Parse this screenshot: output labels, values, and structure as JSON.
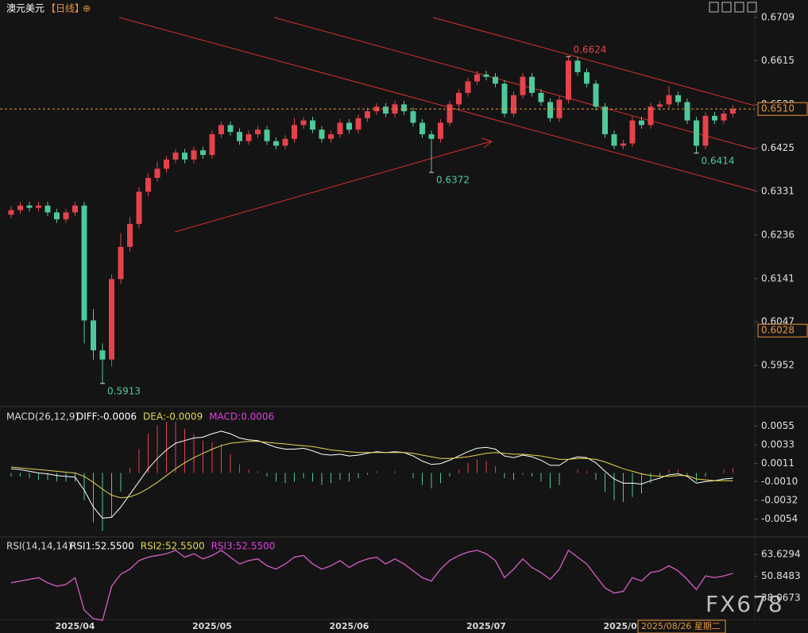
{
  "chart_data": [
    {
      "type": "candlestick",
      "title": "澳元美元",
      "subtitle": "【日线】",
      "categories": [
        null,
        null,
        null,
        null,
        null,
        null,
        null,
        "2025/04",
        null,
        null,
        null,
        null,
        null,
        null,
        null,
        null,
        null,
        null,
        null,
        null,
        null,
        null,
        "2025/05",
        null,
        null,
        null,
        null,
        null,
        null,
        null,
        null,
        null,
        null,
        null,
        null,
        null,
        null,
        "2025/06",
        null,
        null,
        null,
        null,
        null,
        null,
        null,
        null,
        null,
        null,
        null,
        null,
        null,
        null,
        "2025/07",
        null,
        null,
        null,
        null,
        null,
        null,
        null,
        null,
        null,
        null,
        null,
        null,
        null,
        null,
        "2025/08",
        null,
        null,
        null,
        null,
        null,
        null,
        null,
        null,
        null,
        null,
        null,
        null
      ],
      "open": [
        0.628,
        0.629,
        0.63,
        0.6295,
        0.63,
        0.6285,
        0.627,
        0.6285,
        0.63,
        0.605,
        0.5985,
        0.5965,
        0.614,
        0.621,
        0.626,
        0.633,
        0.636,
        0.638,
        0.64,
        0.6415,
        0.64,
        0.642,
        0.641,
        0.6455,
        0.6475,
        0.646,
        0.644,
        0.6455,
        0.6465,
        0.644,
        0.643,
        0.6445,
        0.6475,
        0.6485,
        0.6465,
        0.6445,
        0.6455,
        0.648,
        0.6465,
        0.649,
        0.6505,
        0.6515,
        0.65,
        0.652,
        0.6505,
        0.648,
        0.6455,
        0.6445,
        0.648,
        0.652,
        0.6545,
        0.657,
        0.6585,
        0.658,
        0.6565,
        0.65,
        0.654,
        0.658,
        0.6545,
        0.6525,
        0.649,
        0.653,
        0.6615,
        0.659,
        0.6565,
        0.6515,
        0.6455,
        0.643,
        0.6435,
        0.6485,
        0.6475,
        0.6515,
        0.652,
        0.654,
        0.6525,
        0.6485,
        0.643,
        0.6495,
        0.6485,
        0.65
      ],
      "high": [
        0.6298,
        0.6308,
        0.6308,
        0.6308,
        0.6308,
        0.6293,
        0.6293,
        0.6308,
        0.6308,
        0.6075,
        0.6,
        0.615,
        0.624,
        0.6275,
        0.634,
        0.637,
        0.6395,
        0.6408,
        0.6423,
        0.6423,
        0.6428,
        0.6428,
        0.6463,
        0.6483,
        0.6483,
        0.6468,
        0.6463,
        0.6473,
        0.6473,
        0.6448,
        0.6453,
        0.649,
        0.6493,
        0.6493,
        0.6473,
        0.6463,
        0.6488,
        0.6488,
        0.6498,
        0.6513,
        0.6523,
        0.6523,
        0.6528,
        0.6528,
        0.6513,
        0.6488,
        0.6463,
        0.6488,
        0.6528,
        0.6553,
        0.6578,
        0.6593,
        0.6593,
        0.6588,
        0.6573,
        0.6548,
        0.6588,
        0.6588,
        0.6553,
        0.6533,
        0.6538,
        0.6624,
        0.6623,
        0.6598,
        0.6573,
        0.6523,
        0.6463,
        0.6443,
        0.6493,
        0.6493,
        0.6523,
        0.6528,
        0.656,
        0.6548,
        0.6533,
        0.6493,
        0.6503,
        0.6503,
        0.6508,
        0.6518
      ],
      "low": [
        0.6272,
        0.6282,
        0.6287,
        0.6287,
        0.6277,
        0.6262,
        0.6262,
        0.6277,
        0.6,
        0.5965,
        0.5913,
        0.595,
        0.613,
        0.62,
        0.625,
        0.632,
        0.6352,
        0.6372,
        0.6392,
        0.6392,
        0.6392,
        0.6402,
        0.6402,
        0.6447,
        0.6452,
        0.6432,
        0.6432,
        0.6447,
        0.6432,
        0.6422,
        0.6422,
        0.6437,
        0.6467,
        0.6457,
        0.6437,
        0.6437,
        0.6447,
        0.6457,
        0.6457,
        0.6482,
        0.6497,
        0.6492,
        0.6492,
        0.6497,
        0.6472,
        0.6447,
        0.6372,
        0.6437,
        0.6472,
        0.6512,
        0.6537,
        0.6562,
        0.6572,
        0.6557,
        0.6492,
        0.6492,
        0.6532,
        0.6537,
        0.6517,
        0.6482,
        0.6482,
        0.6522,
        0.6582,
        0.6557,
        0.6507,
        0.6447,
        0.6422,
        0.6422,
        0.6427,
        0.6467,
        0.6467,
        0.6507,
        0.6512,
        0.6517,
        0.6477,
        0.6414,
        0.6422,
        0.6477,
        0.6477,
        0.6492
      ],
      "close": [
        0.629,
        0.63,
        0.6295,
        0.63,
        0.6285,
        0.627,
        0.6285,
        0.63,
        0.605,
        0.5985,
        0.5965,
        0.614,
        0.621,
        0.626,
        0.633,
        0.636,
        0.638,
        0.64,
        0.6415,
        0.64,
        0.642,
        0.641,
        0.6455,
        0.6475,
        0.646,
        0.644,
        0.6455,
        0.6465,
        0.644,
        0.643,
        0.6445,
        0.6475,
        0.6485,
        0.6465,
        0.6445,
        0.6455,
        0.648,
        0.6465,
        0.649,
        0.6505,
        0.6515,
        0.65,
        0.652,
        0.6505,
        0.648,
        0.6455,
        0.6445,
        0.648,
        0.652,
        0.6545,
        0.657,
        0.6585,
        0.658,
        0.6565,
        0.65,
        0.654,
        0.658,
        0.6545,
        0.6525,
        0.649,
        0.653,
        0.6615,
        0.659,
        0.6565,
        0.6515,
        0.6455,
        0.643,
        0.6435,
        0.6485,
        0.6475,
        0.6515,
        0.652,
        0.654,
        0.6525,
        0.6485,
        0.643,
        0.6495,
        0.6485,
        0.65,
        0.651
      ],
      "up_color": "#e5424b",
      "down_color": "#4ec99a",
      "ylim": [
        0.5866,
        0.6747
      ],
      "yticks": [
        0.6709,
        0.6615,
        {
          "value": 0.652,
          "label": "0.6520"
        },
        0.6425,
        0.6331,
        0.6236,
        0.6141,
        0.6047,
        0.5952
      ],
      "last_price": {
        "value": 0.651,
        "label": "0.6510"
      },
      "cursor_price": {
        "value": 0.6028,
        "label": "0.6028"
      },
      "cursor_date": "2025/08/26 星期二",
      "annotations": [
        {
          "candle": 61,
          "field": "high"
        },
        {
          "candle": 46,
          "field": "low"
        },
        {
          "candle": 75,
          "field": "low"
        },
        {
          "candle": 10,
          "field": "low"
        }
      ],
      "watermark": "FX678"
    },
    {
      "type": "macd",
      "title": "MACD(26,12,9)",
      "ylim": [
        -0.0074,
        0.0075
      ],
      "yticks": [
        0.0055,
        0.0033,
        0.0011,
        {
          "value": -0.001,
          "label": "-0.0010"
        },
        -0.0032,
        -0.0054
      ],
      "series": [
        {
          "name": "DIFF:-0.0006",
          "color": "#ffffff",
          "kind": "line",
          "values": [
            0.0005,
            0.0004,
            0.0002,
            0,
            -0.0001,
            -0.0003,
            -0.0004,
            -0.0005,
            -0.002,
            -0.004,
            -0.0053,
            -0.0052,
            -0.004,
            -0.0025,
            -0.001,
            0.0005,
            0.0017,
            0.0027,
            0.0035,
            0.0038,
            0.0041,
            0.0042,
            0.0046,
            0.0049,
            0.0046,
            0.0041,
            0.0039,
            0.0038,
            0.0034,
            0.003,
            0.0028,
            0.0028,
            0.0029,
            0.0026,
            0.0022,
            0.0021,
            0.0022,
            0.002,
            0.0021,
            0.0023,
            0.0025,
            0.0024,
            0.0025,
            0.0024,
            0.002,
            0.0014,
            0.001,
            0.0011,
            0.0015,
            0.002,
            0.0025,
            0.0029,
            0.003,
            0.0028,
            0.002,
            0.0018,
            0.0021,
            0.0019,
            0.0015,
            0.0009,
            0.0009,
            0.0016,
            0.0019,
            0.0018,
            0.0012,
            0.0002,
            -0.0007,
            -0.0012,
            -0.0012,
            -0.0013,
            -0.0009,
            -0.0006,
            -0.0002,
            -0.0001,
            -0.0004,
            -0.0012,
            -0.001,
            -0.0009,
            -0.0007,
            -0.0006
          ]
        },
        {
          "name": "DEA:-0.0009",
          "color": "#e6d84a",
          "kind": "line",
          "values": [
            0.0007,
            0.0006,
            0.0005,
            0.0004,
            0.0003,
            0.0002,
            0.0001,
            0,
            -0.0004,
            -0.0011,
            -0.0019,
            -0.0026,
            -0.0029,
            -0.0028,
            -0.0024,
            -0.0018,
            -0.0011,
            -0.0003,
            0.0005,
            0.0012,
            0.0018,
            0.0023,
            0.0028,
            0.0032,
            0.0035,
            0.0036,
            0.0037,
            0.0037,
            0.0036,
            0.0035,
            0.0034,
            0.0033,
            0.0032,
            0.0031,
            0.0029,
            0.0027,
            0.0026,
            0.0025,
            0.0024,
            0.0024,
            0.0024,
            0.0024,
            0.0024,
            0.0024,
            0.0023,
            0.0021,
            0.0019,
            0.0017,
            0.0017,
            0.0018,
            0.0019,
            0.0021,
            0.0023,
            0.0024,
            0.0023,
            0.0022,
            0.0022,
            0.0021,
            0.002,
            0.0018,
            0.0016,
            0.0016,
            0.0017,
            0.0017,
            0.0016,
            0.0013,
            0.0009,
            0.0005,
            0.0002,
            -0.0001,
            -0.0003,
            -0.0004,
            -0.0004,
            -0.0003,
            -0.0003,
            -0.0007,
            -0.0008,
            -0.0009,
            -0.0009,
            -0.0009
          ]
        },
        {
          "name": "MACD:0.0006",
          "color": "#e040e0",
          "kind": "bar",
          "values": [
            -0.0004,
            -0.0004,
            -0.0006,
            -0.0008,
            -0.0008,
            -0.001,
            -0.001,
            -0.001,
            -0.0032,
            -0.0058,
            -0.0068,
            -0.0052,
            -0.0022,
            0.0006,
            0.0028,
            0.0046,
            0.0056,
            0.006,
            0.006,
            0.0052,
            0.0046,
            0.0038,
            0.0036,
            0.0034,
            0.0022,
            0.001,
            0.0004,
            0.0002,
            -0.0004,
            -0.001,
            -0.0012,
            -0.001,
            -0.0006,
            -0.001,
            -0.0014,
            -0.0012,
            -0.0008,
            -0.001,
            -0.0006,
            -0.0002,
            0.0002,
            0,
            0.0002,
            0,
            -0.0006,
            -0.0014,
            -0.0018,
            -0.0012,
            -0.0004,
            0.0004,
            0.0012,
            0.0016,
            0.0014,
            0.0008,
            -0.0006,
            -0.0008,
            -0.0002,
            -0.0004,
            -0.001,
            -0.0018,
            -0.0014,
            0,
            0.0004,
            0.0002,
            -0.0008,
            -0.0022,
            -0.0032,
            -0.0034,
            -0.0028,
            -0.0024,
            -0.0012,
            -0.0004,
            0.0004,
            0.0004,
            -0.0002,
            -0.001,
            -0.0004,
            0,
            0.0004,
            0.0006
          ]
        }
      ],
      "up_color": "#e5424b",
      "down_color": "#4ec99a"
    },
    {
      "type": "line",
      "title": "RSI(14,14,14)",
      "ylim": [
        23.2,
        72
      ],
      "yticks": [
        63.6294,
        50.8483,
        38.0673
      ],
      "series": [
        {
          "name": "RSI1:52.5500",
          "color": "#ffffff",
          "values": [
            47,
            48,
            49,
            50,
            47,
            45,
            46,
            50,
            31,
            26,
            25,
            45,
            52,
            55,
            60,
            62,
            63,
            64,
            66,
            62,
            64,
            61,
            63,
            66,
            62,
            58,
            60,
            61,
            57,
            55,
            58,
            62,
            63,
            58,
            55,
            57,
            60,
            56,
            59,
            61,
            62,
            58,
            61,
            58,
            54,
            50,
            48,
            55,
            60,
            63,
            65,
            66,
            64,
            60,
            50,
            55,
            61,
            56,
            53,
            49,
            55,
            66,
            62,
            58,
            51,
            44,
            41,
            42,
            50,
            48,
            53,
            54,
            57,
            54,
            49,
            43,
            51,
            50,
            51,
            52.55
          ]
        },
        {
          "name": "RSI2:52.5500",
          "color": "#e6d84a",
          "values": [
            47,
            48,
            49,
            50,
            47,
            45,
            46,
            50,
            31,
            26,
            25,
            45,
            52,
            55,
            60,
            62,
            63,
            64,
            66,
            62,
            64,
            61,
            63,
            66,
            62,
            58,
            60,
            61,
            57,
            55,
            58,
            62,
            63,
            58,
            55,
            57,
            60,
            56,
            59,
            61,
            62,
            58,
            61,
            58,
            54,
            50,
            48,
            55,
            60,
            63,
            65,
            66,
            64,
            60,
            50,
            55,
            61,
            56,
            53,
            49,
            55,
            66,
            62,
            58,
            51,
            44,
            41,
            42,
            50,
            48,
            53,
            54,
            57,
            54,
            49,
            43,
            51,
            50,
            51,
            52.55
          ]
        },
        {
          "name": "RSI3:52.5500",
          "color": "#e040e0",
          "values": [
            47,
            48,
            49,
            50,
            47,
            45,
            46,
            50,
            31,
            26,
            25,
            45,
            52,
            55,
            60,
            62,
            63,
            64,
            66,
            62,
            64,
            61,
            63,
            66,
            62,
            58,
            60,
            61,
            57,
            55,
            58,
            62,
            63,
            58,
            55,
            57,
            60,
            56,
            59,
            61,
            62,
            58,
            61,
            58,
            54,
            50,
            48,
            55,
            60,
            63,
            65,
            66,
            64,
            60,
            50,
            55,
            61,
            56,
            53,
            49,
            55,
            66,
            62,
            58,
            51,
            44,
            41,
            42,
            50,
            48,
            53,
            54,
            57,
            54,
            49,
            43,
            51,
            50,
            51,
            52.55
          ]
        }
      ]
    }
  ]
}
